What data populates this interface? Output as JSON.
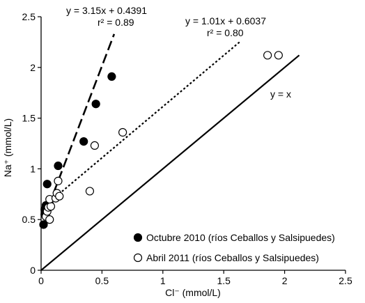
{
  "chart_data": {
    "type": "scatter",
    "xlabel": "Cl⁻ (mmol/L)",
    "ylabel": "Na⁺ (mmol/L)",
    "xlim": [
      0,
      2.5
    ],
    "ylim": [
      0,
      2.5
    ],
    "xticks": [
      0,
      0.5,
      1,
      1.5,
      2,
      2.5
    ],
    "xtick_labels": [
      "0",
      "0.5",
      "1",
      "1.5",
      "2",
      "2.5"
    ],
    "yticks": [
      0,
      0.5,
      1,
      1.5,
      2,
      2.5
    ],
    "ytick_labels": [
      "0",
      "0.5",
      "1",
      "1.5",
      "2",
      "2.5"
    ],
    "grid": false,
    "legend_position": "bottom-right",
    "series": [
      {
        "name": "Octubre 2010 (ríos Ceballos y Salsipuedes)",
        "marker": "filled-circle",
        "color": "#000000",
        "points": [
          {
            "x": 0.02,
            "y": 0.45
          },
          {
            "x": 0.03,
            "y": 0.55
          },
          {
            "x": 0.03,
            "y": 0.6
          },
          {
            "x": 0.04,
            "y": 0.64
          },
          {
            "x": 0.05,
            "y": 0.85
          },
          {
            "x": 0.07,
            "y": 0.65
          },
          {
            "x": 0.14,
            "y": 1.03
          },
          {
            "x": 0.35,
            "y": 1.27
          },
          {
            "x": 0.45,
            "y": 1.64
          },
          {
            "x": 0.58,
            "y": 1.91
          }
        ]
      },
      {
        "name": "Abril 2011 (ríos Ceballos y Salsipuedes)",
        "marker": "open-circle",
        "color": "#000000",
        "points": [
          {
            "x": 0.04,
            "y": 0.53
          },
          {
            "x": 0.05,
            "y": 0.58
          },
          {
            "x": 0.06,
            "y": 0.62
          },
          {
            "x": 0.07,
            "y": 0.5
          },
          {
            "x": 0.08,
            "y": 0.63
          },
          {
            "x": 0.07,
            "y": 0.7
          },
          {
            "x": 0.12,
            "y": 0.71
          },
          {
            "x": 0.13,
            "y": 0.76
          },
          {
            "x": 0.15,
            "y": 0.73
          },
          {
            "x": 0.14,
            "y": 0.88
          },
          {
            "x": 0.4,
            "y": 0.78
          },
          {
            "x": 0.44,
            "y": 1.23
          },
          {
            "x": 0.67,
            "y": 1.36
          },
          {
            "x": 1.86,
            "y": 2.12
          },
          {
            "x": 1.95,
            "y": 2.12
          }
        ]
      }
    ],
    "lines": [
      {
        "label": "y = 3.15x + 0.4391",
        "style": "dashed",
        "slope": 3.15,
        "intercept": 0.4391,
        "x_range": [
          0.02,
          0.6
        ]
      },
      {
        "label": "y = 1.01x + 0.6037",
        "style": "dotted",
        "slope": 1.01,
        "intercept": 0.6037,
        "x_range": [
          0.04,
          1.63
        ]
      },
      {
        "label": "y = x",
        "style": "solid",
        "slope": 1,
        "intercept": 0,
        "x_range": [
          0,
          2.12
        ]
      }
    ],
    "annotations": {
      "eq1": "y = 3.15x + 0.4391",
      "r1": "r² = 0.89",
      "eq2": "y = 1.01x + 0.6037",
      "r2": "r² = 0.80",
      "identity": "y = x"
    }
  }
}
